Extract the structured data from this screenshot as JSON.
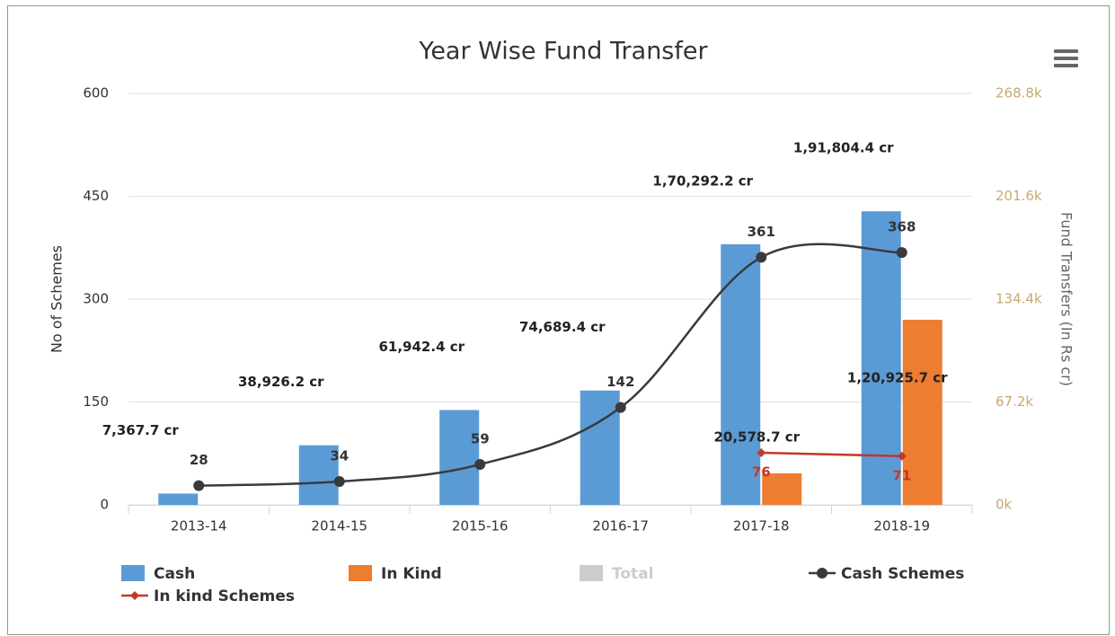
{
  "chart_data": {
    "type": "combo",
    "title": "Year Wise Fund Transfer",
    "y_label": "No of Schemes",
    "y2_label": "Fund Transfers (In Rs cr)",
    "categories": [
      "2013-14",
      "2014-15",
      "2015-16",
      "2016-17",
      "2017-18",
      "2018-19"
    ],
    "ylim": [
      0,
      600
    ],
    "yticks": [
      0,
      150,
      300,
      450,
      600
    ],
    "y2lim": [
      0,
      268800
    ],
    "y2ticks": [
      {
        "value": 0,
        "label": "0k"
      },
      {
        "value": 67200,
        "label": "67.2k"
      },
      {
        "value": 134400,
        "label": "134.4k"
      },
      {
        "value": 201600,
        "label": "201.6k"
      },
      {
        "value": 268800,
        "label": "268.8k"
      }
    ],
    "grid": true,
    "series": [
      {
        "name": "Cash",
        "type": "bar",
        "axis": "y2",
        "color": "#5b9bd5",
        "values": [
          7367.7,
          38926.2,
          61942.4,
          74689.4,
          170292.2,
          191804.4
        ],
        "value_labels": [
          "7,367.7 cr",
          "38,926.2 cr",
          "61,942.4 cr",
          "74,689.4 cr",
          "1,70,292.2 cr",
          "1,91,804.4 cr"
        ]
      },
      {
        "name": "In Kind",
        "type": "bar",
        "axis": "y2",
        "color": "#ed7d31",
        "values": [
          null,
          null,
          null,
          null,
          20578.7,
          120925.7
        ],
        "value_labels": [
          null,
          null,
          null,
          null,
          "20,578.7 cr",
          "1,20,925.7 cr"
        ]
      },
      {
        "name": "Total",
        "type": "bar",
        "color": "#cccccc",
        "visible": false
      },
      {
        "name": "Cash Schemes",
        "type": "line",
        "axis": "y",
        "color": "#3a3a3a",
        "values": [
          28,
          34,
          59,
          142,
          361,
          368
        ]
      },
      {
        "name": "In kind Schemes",
        "type": "line",
        "axis": "y",
        "color": "#c0392b",
        "values": [
          null,
          null,
          null,
          null,
          76,
          71
        ]
      }
    ]
  }
}
